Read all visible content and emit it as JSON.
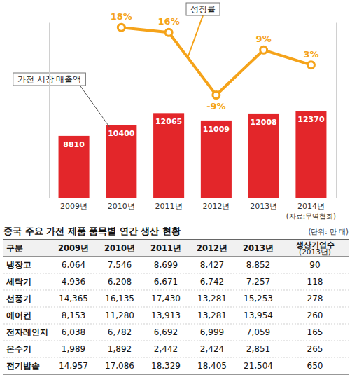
{
  "chart_data": {
    "type": "bar",
    "categories": [
      "2009년",
      "2010년",
      "2011년",
      "2012년",
      "2013년",
      "2014년"
    ],
    "series": [
      {
        "name": "가전 시장 매출액",
        "type": "bar",
        "color": "#e3262a",
        "values": [
          8810,
          10400,
          12065,
          11009,
          12008,
          12370
        ]
      },
      {
        "name": "성장률",
        "type": "line",
        "axis": "y2",
        "color": "#f5a31a",
        "marker": "circle",
        "values": [
          null,
          18,
          16,
          -9,
          9,
          3
        ],
        "value_labels": [
          null,
          "18%",
          "16%",
          "-9%",
          "9%",
          "3%"
        ]
      }
    ],
    "ylim": [
      0,
      25000
    ],
    "y2lim": [
      -50,
      20
    ],
    "data_labels": true,
    "tick_labels": "x",
    "source": "(자료:무역협회)"
  },
  "table": {
    "title": "중국 주요 가전 제품 품목별 연간 생산 현황",
    "unit": "(단위: 만 대)",
    "header": [
      "구분",
      "2009년",
      "2010년",
      "2011년",
      "2012년",
      "2013년",
      "생산기업수(2013년)"
    ],
    "rows": [
      [
        "냉장고",
        "6,064",
        "7,546",
        "8,699",
        "8,427",
        "8,852",
        "90"
      ],
      [
        "세탁기",
        "4,936",
        "6,208",
        "6,671",
        "6,742",
        "7,257",
        "118"
      ],
      [
        "선풍기",
        "14,365",
        "16,135",
        "17,430",
        "13,281",
        "15,253",
        "278"
      ],
      [
        "에어컨",
        "8,153",
        "11,280",
        "13,913",
        "13,281",
        "13,954",
        "260"
      ],
      [
        "전자레인지",
        "6,038",
        "6,782",
        "6,692",
        "6,999",
        "7,059",
        "165"
      ],
      [
        "온수기",
        "1,989",
        "1,892",
        "2,442",
        "2,424",
        "2,851",
        "265"
      ],
      [
        "전기밥솥",
        "14,957",
        "17,086",
        "18,329",
        "18,405",
        "21,504",
        "650"
      ]
    ]
  }
}
